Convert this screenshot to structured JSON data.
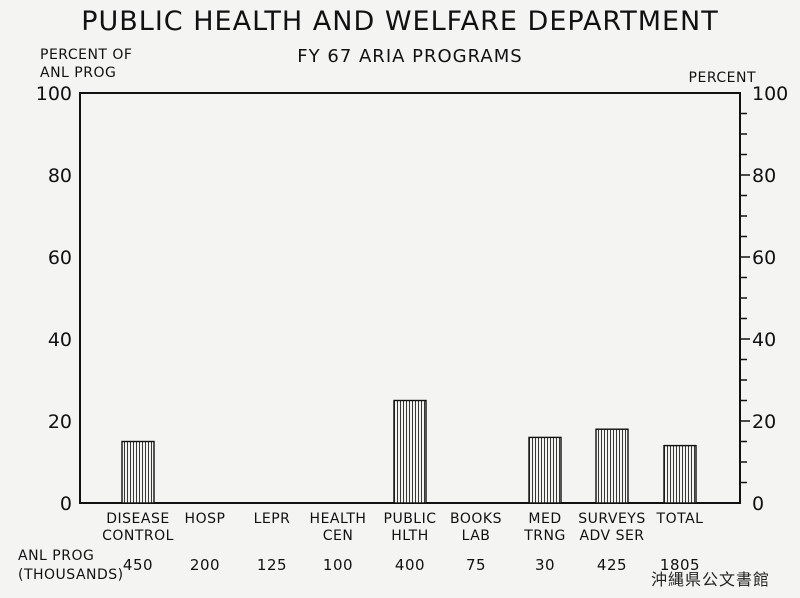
{
  "page": {
    "title": "PUBLIC HEALTH AND WELFARE DEPARTMENT",
    "subtitle": "FY 67 ARIA PROGRAMS",
    "left_axis_title": "PERCENT OF ANL PROG",
    "right_axis_title": "PERCENT",
    "anl_prog_row_label": "ANL PROG (THOUSANDS)",
    "seal_text": "沖縄県公文書館"
  },
  "chart_data": {
    "type": "bar",
    "title": "PUBLIC HEALTH AND WELFARE DEPARTMENT",
    "subtitle": "FY 67 ARIA PROGRAMS",
    "ylabel": "PERCENT OF ANL PROG",
    "ylabel_right": "PERCENT",
    "ylim": [
      0,
      100
    ],
    "yticks": [
      0,
      20,
      40,
      60,
      80,
      100
    ],
    "categories": [
      [
        "DISEASE",
        "CONTROL"
      ],
      [
        "HOSP"
      ],
      [
        "LEPR"
      ],
      [
        "HEALTH",
        "CEN"
      ],
      [
        "PUBLIC",
        "HLTH"
      ],
      [
        "BOOKS",
        "LAB"
      ],
      [
        "MED",
        "TRNG"
      ],
      [
        "SURVEYS",
        "ADV SER"
      ],
      [
        "TOTAL"
      ]
    ],
    "values": [
      15,
      0,
      0,
      0,
      25,
      0,
      16,
      18,
      14
    ],
    "anl_prog_thousands": [
      "450",
      "200",
      "125",
      "100",
      "400",
      "75",
      "30",
      "425",
      "1805"
    ],
    "bar_fill": "vertical-hatch",
    "grid": false
  }
}
